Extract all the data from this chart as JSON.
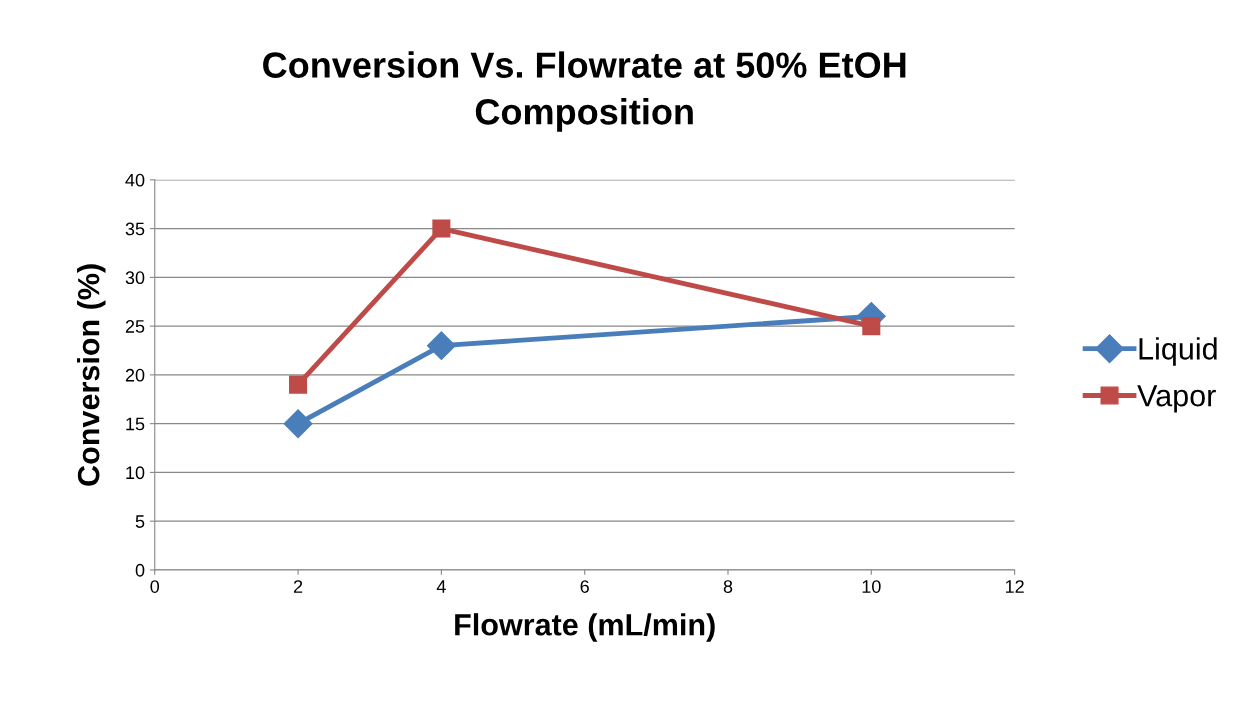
{
  "chart_data": {
    "type": "line",
    "title": "Conversion Vs. Flowrate at 50% EtOH\nComposition",
    "xlabel": "Flowrate (mL/min)",
    "ylabel": "Conversion (%)",
    "series": [
      {
        "name": "Liquid",
        "color": "#4a7ebb",
        "marker": "diamond",
        "x": [
          2,
          4,
          10
        ],
        "values": [
          15,
          23,
          26
        ]
      },
      {
        "name": "Vapor",
        "color": "#be4b48",
        "marker": "square",
        "x": [
          2,
          4,
          10
        ],
        "values": [
          19,
          35,
          25
        ]
      }
    ],
    "xlim": [
      0,
      12
    ],
    "xticks": [
      0,
      2,
      4,
      6,
      8,
      10,
      12
    ],
    "ylim": [
      0,
      40
    ],
    "yticks": [
      0,
      5,
      10,
      15,
      20,
      25,
      30,
      35,
      40
    ],
    "grid": "y",
    "legend": "right",
    "line_style": "solid"
  }
}
